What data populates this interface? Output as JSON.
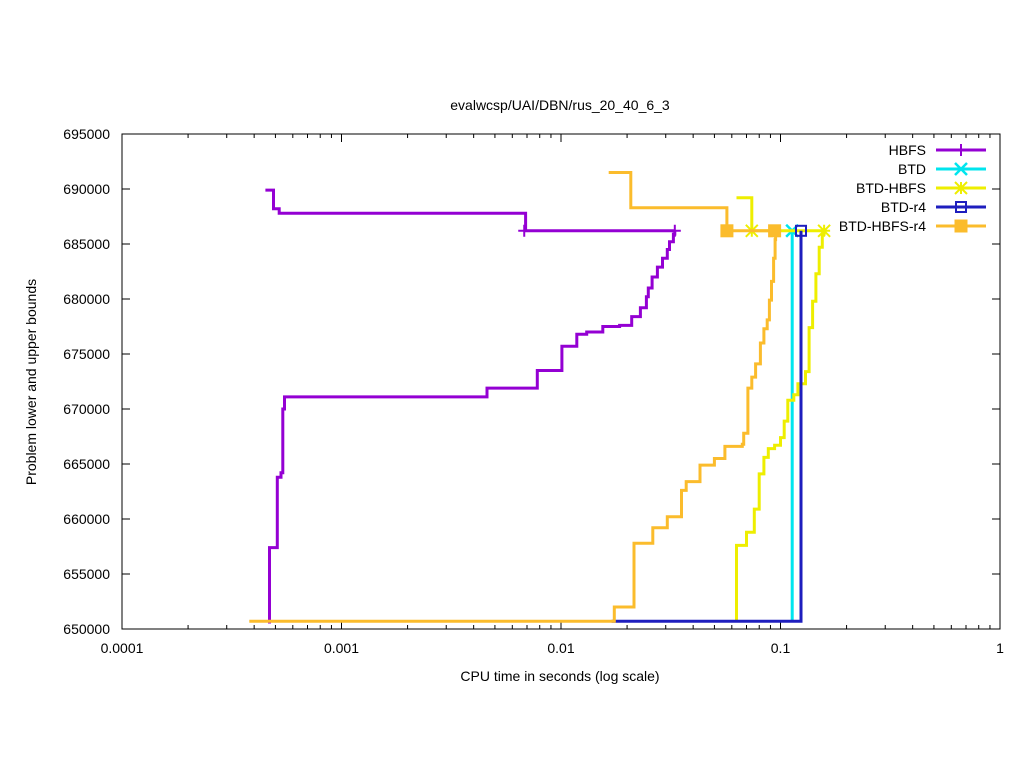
{
  "chart_data": {
    "type": "line",
    "title": "evalwcsp/UAI/DBN/rus_20_40_6_3",
    "xlabel": "CPU time in seconds (log scale)",
    "ylabel": "Problem lower and upper bounds",
    "x_scale": "log",
    "xlim": [
      0.0001,
      1
    ],
    "ylim": [
      650000,
      695000
    ],
    "x_ticks": [
      0.0001,
      0.001,
      0.01,
      0.1,
      1
    ],
    "x_tick_labels": [
      "0.0001",
      "0.001",
      "0.01",
      "0.1",
      "1"
    ],
    "y_ticks": [
      650000,
      655000,
      660000,
      665000,
      670000,
      675000,
      680000,
      685000,
      690000,
      695000
    ],
    "y_tick_labels": [
      "650000",
      "655000",
      "660000",
      "665000",
      "670000",
      "675000",
      "680000",
      "685000",
      "690000",
      "695000"
    ],
    "grid": false,
    "legend_position": "top-right",
    "series": [
      {
        "name": "HBFS",
        "color": "#9400d3",
        "marker": "plus",
        "upper": [
          [
            0.00045,
            689900
          ],
          [
            0.00049,
            688200
          ],
          [
            0.00052,
            687800
          ],
          [
            0.0069,
            686200
          ],
          [
            0.033,
            686200
          ]
        ],
        "lower": [
          [
            0.00047,
            650500
          ],
          [
            0.00047,
            657400
          ],
          [
            0.00051,
            663800
          ],
          [
            0.00053,
            664200
          ],
          [
            0.00054,
            670000
          ],
          [
            0.00055,
            671100
          ],
          [
            0.0046,
            671900
          ],
          [
            0.0078,
            673500
          ],
          [
            0.0101,
            675700
          ],
          [
            0.0118,
            676800
          ],
          [
            0.0131,
            677000
          ],
          [
            0.0155,
            677500
          ],
          [
            0.0185,
            677600
          ],
          [
            0.021,
            678400
          ],
          [
            0.023,
            679200
          ],
          [
            0.0245,
            680200
          ],
          [
            0.025,
            681000
          ],
          [
            0.026,
            682000
          ],
          [
            0.0275,
            682900
          ],
          [
            0.029,
            683700
          ],
          [
            0.0305,
            684500
          ],
          [
            0.0312,
            685200
          ],
          [
            0.0325,
            685900
          ],
          [
            0.033,
            686200
          ]
        ],
        "markers": [
          [
            0.0068,
            686200
          ],
          [
            0.033,
            686200
          ]
        ]
      },
      {
        "name": "BTD",
        "color": "#00e5ee",
        "marker": "cross",
        "upper": [
          [
            0.113,
            686200
          ]
        ],
        "lower": [
          [
            0.113,
            650700
          ],
          [
            0.113,
            686200
          ]
        ],
        "markers": [
          [
            0.113,
            686200
          ]
        ]
      },
      {
        "name": "BTD-HBFS",
        "color": "#eeee00",
        "marker": "star",
        "upper": [
          [
            0.063,
            689200
          ],
          [
            0.074,
            686200
          ],
          [
            0.158,
            686200
          ]
        ],
        "lower": [
          [
            0.063,
            650700
          ],
          [
            0.063,
            657600
          ],
          [
            0.07,
            658800
          ],
          [
            0.076,
            660900
          ],
          [
            0.08,
            664100
          ],
          [
            0.084,
            665600
          ],
          [
            0.088,
            666400
          ],
          [
            0.094,
            666700
          ],
          [
            0.1,
            667400
          ],
          [
            0.104,
            668900
          ],
          [
            0.108,
            670800
          ],
          [
            0.115,
            671300
          ],
          [
            0.12,
            672300
          ],
          [
            0.13,
            673400
          ],
          [
            0.135,
            677400
          ],
          [
            0.14,
            679800
          ],
          [
            0.145,
            682300
          ],
          [
            0.15,
            684700
          ],
          [
            0.155,
            685900
          ],
          [
            0.158,
            686200
          ]
        ],
        "markers": [
          [
            0.074,
            686200
          ],
          [
            0.158,
            686200
          ]
        ]
      },
      {
        "name": "BTD-r4",
        "color": "#1e1ebe",
        "marker": "square",
        "upper": [
          [
            0.124,
            686200
          ]
        ],
        "lower": [
          [
            0.017,
            650700
          ],
          [
            0.124,
            650700
          ],
          [
            0.124,
            686200
          ]
        ],
        "markers": [
          [
            0.124,
            686200
          ]
        ]
      },
      {
        "name": "BTD-HBFS-r4",
        "color": "#fbbc2c",
        "marker": "filled-square",
        "upper": [
          [
            0.0165,
            691500
          ],
          [
            0.0208,
            688300
          ],
          [
            0.057,
            686200
          ],
          [
            0.094,
            686200
          ]
        ],
        "lower": [
          [
            0.00038,
            650700
          ],
          [
            0.0175,
            650700
          ],
          [
            0.0175,
            652000
          ],
          [
            0.0215,
            657800
          ],
          [
            0.0262,
            659200
          ],
          [
            0.0305,
            660200
          ],
          [
            0.0354,
            662600
          ],
          [
            0.0372,
            663400
          ],
          [
            0.043,
            664900
          ],
          [
            0.05,
            665500
          ],
          [
            0.0558,
            666600
          ],
          [
            0.067,
            666800
          ],
          [
            0.068,
            667800
          ],
          [
            0.071,
            671900
          ],
          [
            0.074,
            672900
          ],
          [
            0.077,
            674100
          ],
          [
            0.081,
            676000
          ],
          [
            0.084,
            677300
          ],
          [
            0.087,
            678100
          ],
          [
            0.089,
            679900
          ],
          [
            0.091,
            681600
          ],
          [
            0.093,
            683700
          ],
          [
            0.0945,
            685400
          ],
          [
            0.095,
            686200
          ]
        ],
        "markers": [
          [
            0.057,
            686200
          ],
          [
            0.094,
            686200
          ]
        ]
      }
    ]
  }
}
